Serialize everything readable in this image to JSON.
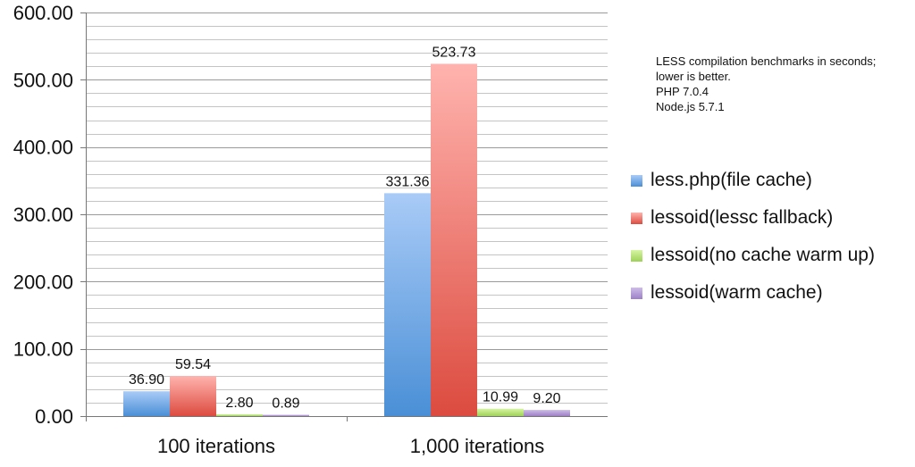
{
  "chart_data": {
    "type": "bar",
    "categories": [
      "100 iterations",
      "1,000 iterations"
    ],
    "series": [
      {
        "name": "less.php(file cache)",
        "values": [
          36.9,
          331.36
        ],
        "color_light": "#a9cbf7",
        "color_dark": "#4a8fd6"
      },
      {
        "name": "lessoid(lessc fallback)",
        "values": [
          59.54,
          523.73
        ],
        "color_light": "#ffb3ae",
        "color_dark": "#dc4b3f"
      },
      {
        "name": "lessoid(no cache warm up)",
        "values": [
          2.8,
          10.99
        ],
        "color_light": "#d6f5a3",
        "color_dark": "#9ed157"
      },
      {
        "name": "lessoid(warm cache)",
        "values": [
          0.89,
          9.2
        ],
        "color_light": "#cdbde6",
        "color_dark": "#9d7fc7"
      }
    ],
    "value_labels": [
      [
        "36.90",
        "331.36"
      ],
      [
        "59.54",
        "523.73"
      ],
      [
        "2.80",
        "10.99"
      ],
      [
        "0.89",
        "9.20"
      ]
    ],
    "y_ticks": [
      "0.00",
      "100.00",
      "200.00",
      "300.00",
      "400.00",
      "500.00",
      "600.00"
    ],
    "ylim": [
      0,
      600
    ],
    "y_major_step": 100,
    "y_minor_step": 20,
    "grid": true,
    "legend_position": "right",
    "annotation": [
      "LESS compilation benchmarks in seconds;",
      "lower is better.",
      "PHP 7.0.4",
      "Node.js 5.7.1"
    ]
  }
}
